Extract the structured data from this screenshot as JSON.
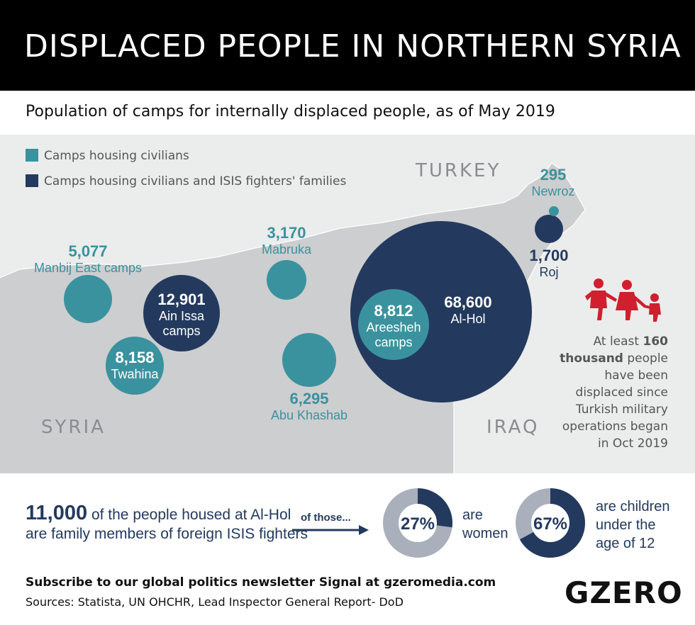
{
  "title": "DISPLACED PEOPLE IN NORTHERN SYRIA",
  "subtitle": "Population of camps for internally displaced people, as of May 2019",
  "legend": {
    "civilians": "Camps housing civilians",
    "fighters": "Camps housing civilians and ISIS fighters' families"
  },
  "colors": {
    "teal": "#3a929f",
    "navy": "#233a5e",
    "syria": "#cdcecf",
    "neighbors": "#ebecec",
    "accent_red": "#d01f2e"
  },
  "countries": {
    "turkey": "TURKEY",
    "syria": "SYRIA",
    "iraq": "IRAQ"
  },
  "camps": {
    "manbij": {
      "value": "5,077",
      "name": "Manbij East camps",
      "type": "civilians"
    },
    "ain_issa": {
      "value": "12,901",
      "name1": "Ain Issa",
      "name2": "camps",
      "type": "fighters"
    },
    "twahina": {
      "value": "8,158",
      "name": "Twahina",
      "type": "civilians"
    },
    "mabruka": {
      "value": "3,170",
      "name": "Mabruka",
      "type": "civilians"
    },
    "abu_khashab": {
      "value": "6,295",
      "name": "Abu Khashab",
      "type": "civilians"
    },
    "areesheh": {
      "value": "8,812",
      "name1": "Areesheh",
      "name2": "camps",
      "type": "civilians"
    },
    "al_hol": {
      "value": "68,600",
      "name": "Al-Hol",
      "type": "fighters"
    },
    "newroz": {
      "value": "295",
      "name": "Newroz",
      "type": "civilians"
    },
    "roj": {
      "value": "1,700",
      "name": "Roj",
      "type": "fighters"
    }
  },
  "note": {
    "l1a": "At least ",
    "l1b": "160",
    "l2a": "thousand",
    "l2b": " people",
    "l3": "have been",
    "l4": "displaced since",
    "l5": "Turkish military",
    "l6": "operations began",
    "l7": "in Oct 2019"
  },
  "al_hol_stats": {
    "big_number": "11,000",
    "line1": " of the people housed at Al-Hol",
    "line2": "are family members of foreign ISIS fighters",
    "of_those": "of those..."
  },
  "donuts": [
    {
      "percent": 27,
      "label": "27%",
      "text1": "are",
      "text2": "women"
    },
    {
      "percent": 67,
      "label": "67%",
      "text1": "are children",
      "text2": "under the",
      "text3": "age of 12"
    }
  ],
  "footer": {
    "subscribe": "Subscribe to our global politics newsletter Signal at gzeromedia.com",
    "sources": "Sources: Statista, UN OHCHR, Lead Inspector General Report- DoD",
    "logo": "GZERO"
  }
}
